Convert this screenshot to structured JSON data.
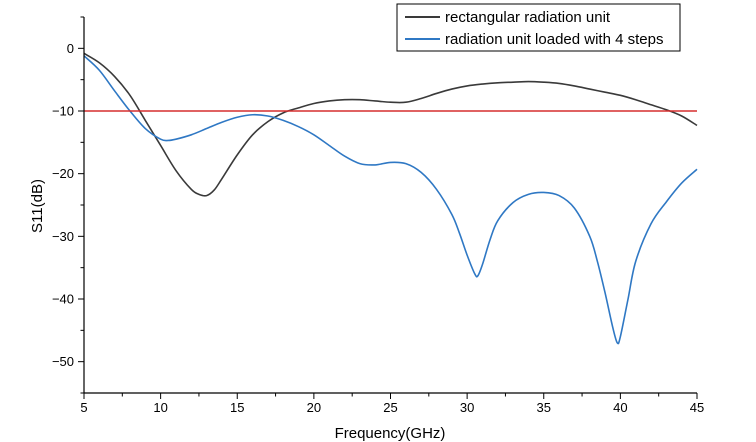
{
  "chart_data": {
    "type": "line",
    "title": "",
    "xlabel": "Frequency(GHz)",
    "ylabel": "S11(dB)",
    "xlim": [
      5,
      45
    ],
    "ylim": [
      -55,
      5
    ],
    "xticks": [
      5,
      10,
      15,
      20,
      25,
      30,
      35,
      40,
      45
    ],
    "yticks": [
      0,
      -10,
      -20,
      -30,
      -40,
      -50
    ],
    "xtick_labels": [
      "5",
      "10",
      "15",
      "20",
      "25",
      "30",
      "35",
      "40",
      "45"
    ],
    "ytick_labels": [
      "0",
      "−10",
      "−20",
      "−30",
      "−40",
      "−50"
    ],
    "grid": false,
    "legend_position": "top-right",
    "series": [
      {
        "name": "rectangular radiation unit",
        "color": "#3a3a3a",
        "x": [
          5,
          6,
          7,
          8,
          9,
          10,
          11,
          12,
          12.5,
          13,
          13.5,
          14,
          15,
          16,
          17,
          18,
          19,
          20,
          21,
          22,
          23,
          24,
          25,
          26,
          27,
          28,
          29,
          30,
          31,
          32,
          33,
          34,
          35,
          36,
          37,
          38,
          39,
          40,
          41,
          42,
          43,
          44,
          45
        ],
        "y": [
          -0.8,
          -2.3,
          -4.5,
          -7.5,
          -11.5,
          -15.5,
          -19.5,
          -22.5,
          -23.3,
          -23.5,
          -22.6,
          -20.8,
          -17.0,
          -13.8,
          -11.7,
          -10.3,
          -9.5,
          -8.8,
          -8.4,
          -8.2,
          -8.2,
          -8.4,
          -8.6,
          -8.6,
          -8.0,
          -7.2,
          -6.5,
          -6.0,
          -5.7,
          -5.5,
          -5.4,
          -5.3,
          -5.4,
          -5.6,
          -6.0,
          -6.5,
          -7.0,
          -7.5,
          -8.2,
          -9.0,
          -9.8,
          -10.8,
          -12.3
        ]
      },
      {
        "name": "radiation unit loaded with 4 steps",
        "color": "#2f78c4",
        "x": [
          5,
          6,
          7,
          8,
          9,
          10,
          10.5,
          11,
          12,
          13,
          14,
          15,
          16,
          17,
          18,
          19,
          20,
          21,
          22,
          23,
          24,
          25,
          26,
          27,
          28,
          29,
          29.5,
          30,
          30.5,
          30.7,
          31,
          31.5,
          32,
          33,
          34,
          35,
          36,
          37,
          38,
          38.5,
          39,
          39.5,
          39.8,
          40,
          40.5,
          41,
          42,
          43,
          44,
          45
        ],
        "y": [
          -1.2,
          -3.5,
          -6.8,
          -10.0,
          -12.8,
          -14.5,
          -14.7,
          -14.5,
          -13.8,
          -12.8,
          -11.8,
          -11.0,
          -10.6,
          -10.8,
          -11.5,
          -12.5,
          -13.8,
          -15.5,
          -17.2,
          -18.4,
          -18.6,
          -18.2,
          -18.4,
          -19.8,
          -22.5,
          -26.5,
          -29.5,
          -33.0,
          -36.0,
          -36.3,
          -34.5,
          -30.5,
          -27.5,
          -24.6,
          -23.3,
          -23.0,
          -23.5,
          -25.5,
          -30.0,
          -34.0,
          -39.0,
          -44.5,
          -47.0,
          -46.0,
          -40.0,
          -34.0,
          -28.0,
          -24.5,
          -21.5,
          -19.3
        ]
      },
      {
        "name": "",
        "color": "#d62f2f",
        "x": [
          5,
          45
        ],
        "y": [
          -10,
          -10
        ]
      }
    ]
  }
}
